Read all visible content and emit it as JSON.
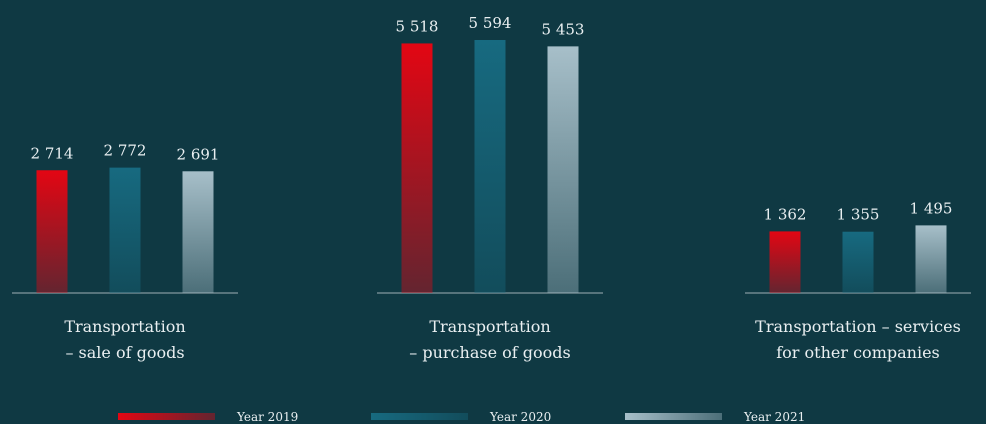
{
  "chart_data": {
    "type": "bar",
    "categories": [
      [
        "Transportation",
        "– sale of goods"
      ],
      [
        "Transportation",
        "– purchase of goods"
      ],
      [
        "Transportation – services",
        "for other companies"
      ]
    ],
    "series": [
      {
        "name": "Year 2019",
        "color": "#e30613",
        "values": [
          2714,
          5518,
          1362
        ],
        "value_labels": [
          "2 714",
          "5 518",
          "1 362"
        ]
      },
      {
        "name": "Year 2020",
        "color": "#176a80",
        "values": [
          2772,
          5594,
          1355
        ],
        "value_labels": [
          "2 772",
          "5 594",
          "1 355"
        ]
      },
      {
        "name": "Year 2021",
        "color": "#a7bfc9",
        "values": [
          2691,
          5453,
          1495
        ],
        "value_labels": [
          "2 691",
          "5 453",
          "1 495"
        ]
      }
    ]
  }
}
